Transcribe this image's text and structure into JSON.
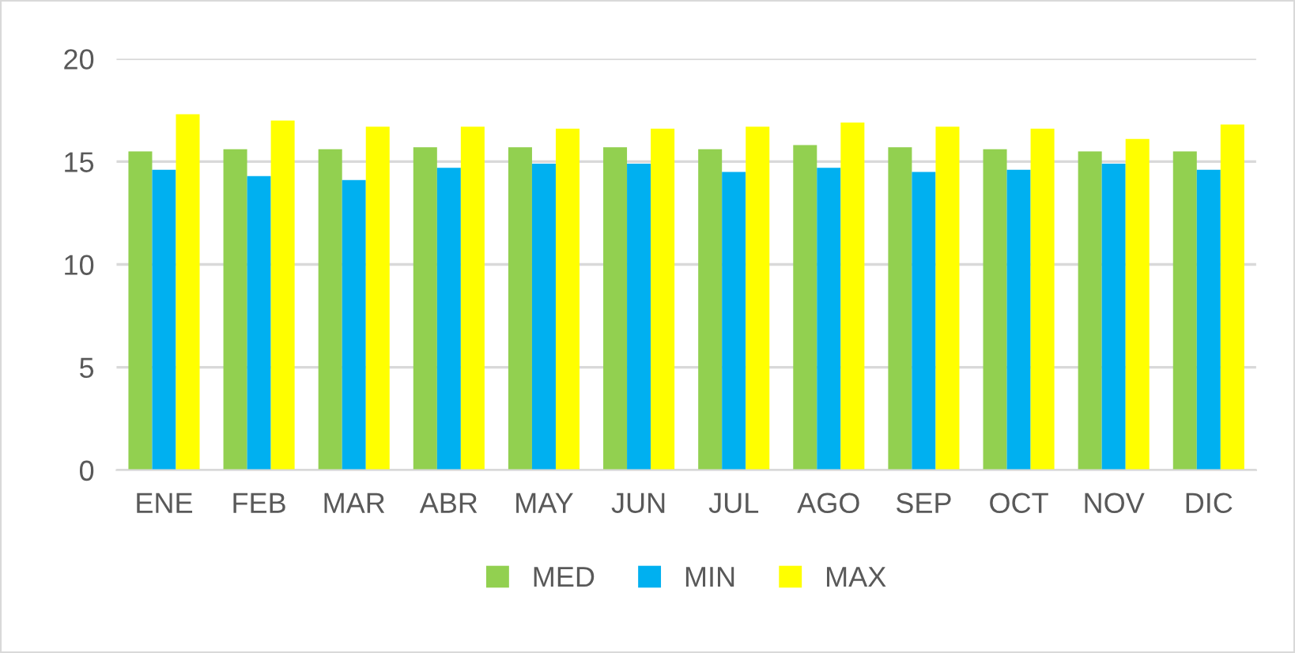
{
  "chart_data": {
    "type": "bar",
    "categories": [
      "ENE",
      "FEB",
      "MAR",
      "ABR",
      "MAY",
      "JUN",
      "JUL",
      "AGO",
      "SEP",
      "OCT",
      "NOV",
      "DIC"
    ],
    "series": [
      {
        "name": "MED",
        "color": "#92d050",
        "values": [
          15.5,
          15.6,
          15.6,
          15.7,
          15.7,
          15.7,
          15.6,
          15.8,
          15.7,
          15.6,
          15.5,
          15.5
        ]
      },
      {
        "name": "MIN",
        "color": "#00b0f0",
        "values": [
          14.6,
          14.3,
          14.1,
          14.7,
          14.9,
          14.9,
          14.5,
          14.7,
          14.5,
          14.6,
          14.9,
          14.6
        ]
      },
      {
        "name": "MAX",
        "color": "#ffff00",
        "values": [
          17.3,
          17.0,
          16.7,
          16.7,
          16.6,
          16.6,
          16.7,
          16.9,
          16.7,
          16.6,
          16.1,
          16.8
        ]
      }
    ],
    "ylim": [
      0,
      20
    ],
    "yticks": [
      0,
      5,
      10,
      15,
      20
    ],
    "grid": "y",
    "legend": "bottom"
  }
}
